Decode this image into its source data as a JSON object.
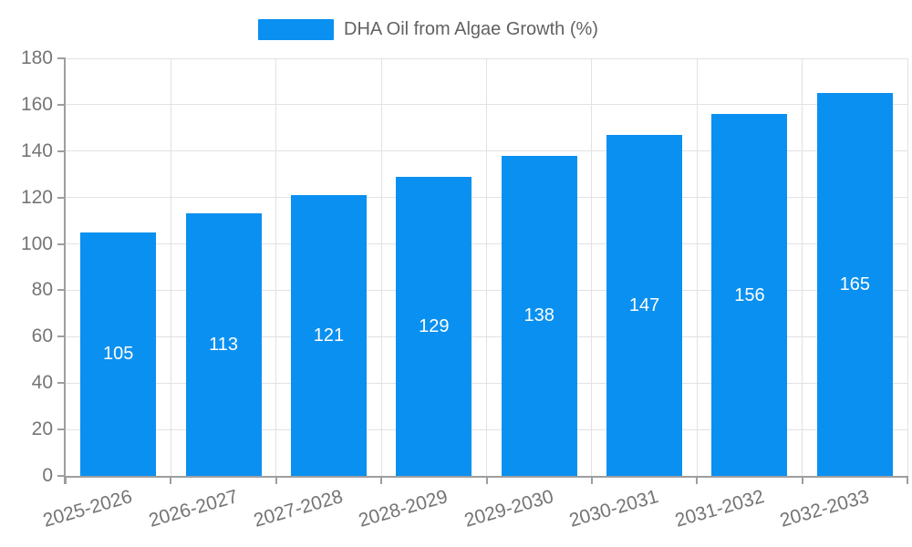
{
  "chart_data": {
    "type": "bar",
    "title": "DHA Oil from Algae Growth (%)",
    "legend": {
      "label": "DHA Oil from Algae Growth (%)",
      "position": "top-center"
    },
    "categories": [
      "2025-2026",
      "2026-2027",
      "2027-2028",
      "2028-2029",
      "2029-2030",
      "2030-2031",
      "2031-2032",
      "2032-2033"
    ],
    "series": [
      {
        "name": "DHA Oil from Algae Growth (%)",
        "values": [
          105,
          113,
          121,
          129,
          138,
          147,
          156,
          165
        ]
      }
    ],
    "value_labels_shown": true,
    "xlabel": "",
    "ylabel": "",
    "ylim": [
      0,
      180
    ],
    "ytick_step": 20,
    "yticks": [
      0,
      20,
      40,
      60,
      80,
      100,
      120,
      140,
      160,
      180
    ],
    "grid": true,
    "x_label_rotation_deg": -16,
    "colors": {
      "bar": "#0a90f0",
      "value_label": "#ffffff",
      "grid": "#e2e2e2",
      "axis": "#9e9e9e",
      "tick_label": "#757575",
      "legend_text": "#616161",
      "background": "#ffffff"
    }
  }
}
